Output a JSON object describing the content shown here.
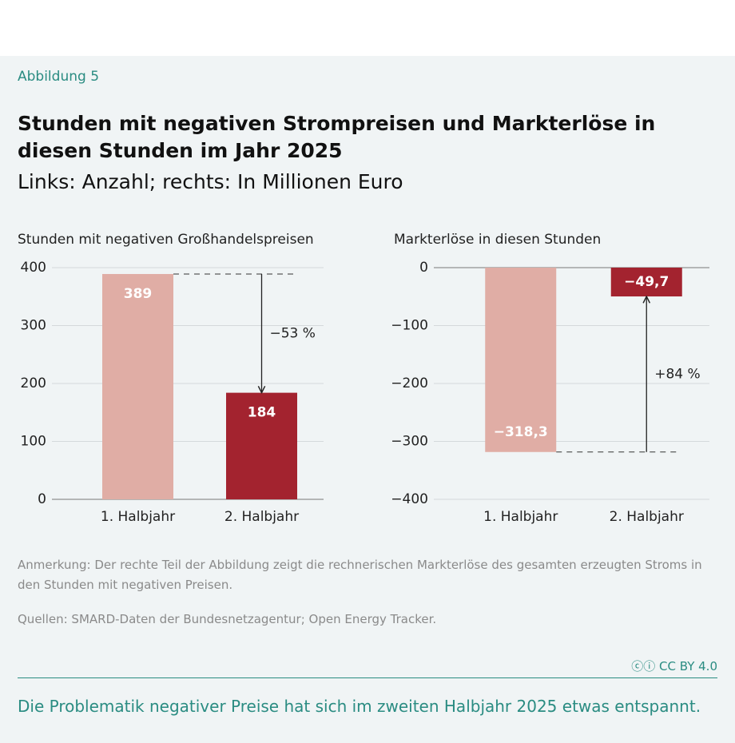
{
  "figure_label": "Abbildung 5",
  "title": "Stunden mit negativen Strompreisen und Markterlöse in diesen Stunden im Jahr 2025",
  "subtitle": "Links: Anzahl; rechts: In Millionen Euro",
  "chart_data": [
    {
      "type": "bar",
      "title": "Stunden mit negativen Großhandelspreisen",
      "categories": [
        "1. Halbjahr",
        "2. Halbjahr"
      ],
      "values": [
        389,
        184
      ],
      "colors": [
        "#e0ada5",
        "#a3232f"
      ],
      "ylim": [
        0,
        400
      ],
      "yticks": [
        0,
        100,
        200,
        300,
        400
      ],
      "grid": true,
      "annotation": "−53 %"
    },
    {
      "type": "bar",
      "title": "Markterlöse in diesen Stunden",
      "categories": [
        "1. Halbjahr",
        "2. Halbjahr"
      ],
      "values": [
        -318.3,
        -49.7
      ],
      "value_labels": [
        "−318,3",
        "−49,7"
      ],
      "colors": [
        "#e0ada5",
        "#a3232f"
      ],
      "ylim": [
        -400,
        0
      ],
      "yticks": [
        {
          "value": -400,
          "label": "−400"
        },
        {
          "value": -300,
          "label": "−300"
        },
        {
          "value": -200,
          "label": "−200"
        },
        {
          "value": -100,
          "label": "−100"
        },
        0
      ],
      "grid": true,
      "annotation": "+84 %"
    }
  ],
  "note": "Anmerkung: Der rechte Teil der Abbildung zeigt die rechnerischen Markterlöse des gesamten erzeugten Stroms in den Stunden mit negativen Preisen.",
  "source": "Quellen: SMARD-Daten der Bundesnetzagentur; Open Energy Tracker.",
  "license": "CC BY 4.0",
  "caption": "Die Problematik negativer Preise hat sich im zweiten Halbjahr 2025 etwas entspannt."
}
